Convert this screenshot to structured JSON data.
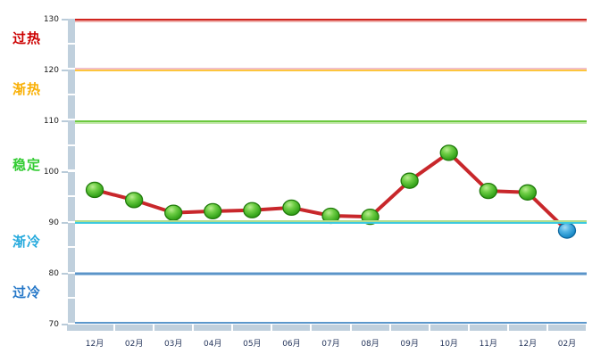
{
  "chart_data": {
    "type": "line",
    "title": "",
    "xlabel": "",
    "ylabel": "",
    "categories": [
      "12月",
      "02月",
      "03月",
      "04月",
      "05月",
      "06月",
      "07月",
      "08月",
      "09月",
      "10月",
      "11月",
      "12月",
      "02月"
    ],
    "values": [
      96.5,
      94.5,
      92,
      92.3,
      92.5,
      93,
      91.4,
      91.2,
      98.3,
      103.8,
      96.3,
      96,
      88.5
    ],
    "marker_colors": [
      "green",
      "green",
      "green",
      "green",
      "green",
      "green",
      "green",
      "green",
      "green",
      "green",
      "green",
      "green",
      "blue"
    ],
    "ylim": [
      70,
      130
    ],
    "yticks": [
      130,
      120,
      110,
      100,
      90,
      80,
      70
    ],
    "legend": "none",
    "grid": "horizontal threshold lines only",
    "line_color": "#c8272b",
    "zones": [
      {
        "label": "过热",
        "label_color": "#cc0000",
        "range": [
          120,
          130
        ]
      },
      {
        "label": "渐热",
        "label_color": "#f9b006",
        "range": [
          110,
          120
        ]
      },
      {
        "label": "稳定",
        "label_color": "#33cc33",
        "range": [
          90,
          110
        ]
      },
      {
        "label": "渐冷",
        "label_color": "#26aadd",
        "range": [
          80,
          90
        ]
      },
      {
        "label": "过冷",
        "label_color": "#2577c8",
        "range": [
          70,
          80
        ]
      }
    ],
    "boundary_lines": [
      {
        "value": 130,
        "color": "#d0241f",
        "halo": "#efb0ac",
        "halo_side": "below"
      },
      {
        "value": 120,
        "color": "#fdc53d",
        "halo": "#f2c0ca",
        "halo_side": "above"
      },
      {
        "value": 110,
        "color": "#6cc93f",
        "halo": "#c4e8ad",
        "halo_side": "below"
      },
      {
        "value": 90,
        "color": "#3cc9de",
        "halo": "#b2dc8e",
        "halo_side": "above"
      },
      {
        "value": 80,
        "color": "#5a94c8",
        "halo": "#aecbe6",
        "halo_side": "both"
      }
    ],
    "baseline_color": "#5b97cb",
    "axis_bar_color": "#c0d0dd",
    "tick_label_color": "#1a1a1a",
    "x_label_color": "#26365c",
    "markers": {
      "green": {
        "stroke": "#1f7a0a",
        "gradient": "gradGreen"
      },
      "blue": {
        "stroke": "#0e679e",
        "gradient": "gradBlue"
      }
    }
  }
}
